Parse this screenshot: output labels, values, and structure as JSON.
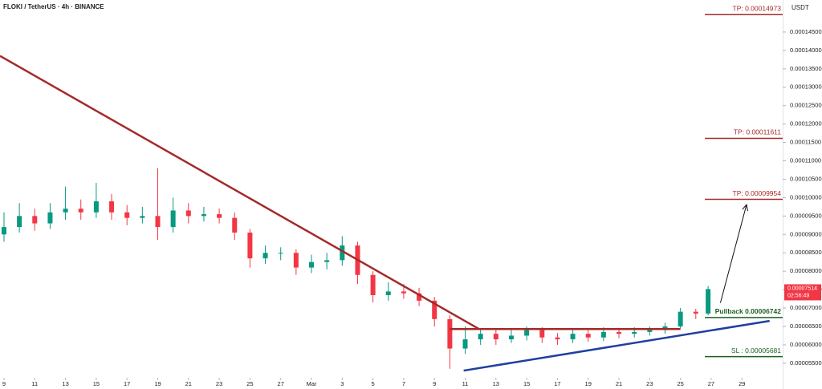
{
  "chart_data": {
    "type": "candlestick",
    "title": "FLOKI / TetherUS · 4h · BINANCE",
    "y_unit": "USDT",
    "up_color": "#089981",
    "down_color": "#f23645",
    "xlim": [
      -0.26,
      50.65
    ],
    "ylim": [
      4.8e-05,
      0.0001537
    ],
    "xticks": [
      {
        "value": 0,
        "label": "9"
      },
      {
        "value": 2,
        "label": "11"
      },
      {
        "value": 4,
        "label": "13"
      },
      {
        "value": 6,
        "label": "15"
      },
      {
        "value": 8,
        "label": "17"
      },
      {
        "value": 10,
        "label": "19"
      },
      {
        "value": 12,
        "label": "21"
      },
      {
        "value": 14,
        "label": "23"
      },
      {
        "value": 16,
        "label": "25"
      },
      {
        "value": 18,
        "label": "27"
      },
      {
        "value": 20,
        "label": "Mar"
      },
      {
        "value": 22,
        "label": "3"
      },
      {
        "value": 24,
        "label": "5"
      },
      {
        "value": 26,
        "label": "7"
      },
      {
        "value": 28,
        "label": "9"
      },
      {
        "value": 30,
        "label": "11"
      },
      {
        "value": 32,
        "label": "13"
      },
      {
        "value": 34,
        "label": "15"
      },
      {
        "value": 36,
        "label": "17"
      },
      {
        "value": 38,
        "label": "19"
      },
      {
        "value": 40,
        "label": "21"
      },
      {
        "value": 42,
        "label": "23"
      },
      {
        "value": 44,
        "label": "25"
      },
      {
        "value": 46,
        "label": "27"
      },
      {
        "value": 48,
        "label": "29"
      }
    ],
    "yticks": [
      {
        "value": 5.5e-05,
        "label": "0.00005500"
      },
      {
        "value": 6e-05,
        "label": "0.00006000"
      },
      {
        "value": 6.5e-05,
        "label": "0.00006500"
      },
      {
        "value": 7e-05,
        "label": "0.00007000"
      },
      {
        "value": 7.5e-05,
        "label": "0.00007500"
      },
      {
        "value": 8e-05,
        "label": "0.00008000"
      },
      {
        "value": 8.5e-05,
        "label": "0.00008500"
      },
      {
        "value": 9e-05,
        "label": "0.00009000"
      },
      {
        "value": 9.5e-05,
        "label": "0.00009500"
      },
      {
        "value": 0.0001,
        "label": "0.00010000"
      },
      {
        "value": 0.000105,
        "label": "0.00010500"
      },
      {
        "value": 0.00011,
        "label": "0.00011000"
      },
      {
        "value": 0.000115,
        "label": "0.00011500"
      },
      {
        "value": 0.00012,
        "label": "0.00012000"
      },
      {
        "value": 0.000125,
        "label": "0.00012500"
      },
      {
        "value": 0.00013,
        "label": "0.00013000"
      },
      {
        "value": 0.000135,
        "label": "0.00013500"
      },
      {
        "value": 0.00014,
        "label": "0.00014000"
      },
      {
        "value": 0.000145,
        "label": "0.00014500"
      }
    ],
    "candles": {
      "x": [
        0,
        1,
        2,
        3,
        4,
        5,
        6,
        7,
        8,
        9,
        10,
        11,
        12,
        13,
        14,
        15,
        16,
        17,
        18,
        19,
        20,
        21,
        22,
        23,
        24,
        25,
        26,
        27,
        28,
        29,
        30,
        31,
        32,
        33,
        34,
        35,
        36,
        37,
        38,
        39,
        40,
        41,
        42,
        43,
        44,
        45,
        45.8
      ],
      "open": [
        9e-05,
        9.2e-05,
        9.5e-05,
        9.3e-05,
        9.6e-05,
        9.7e-05,
        9.6e-05,
        9.9e-05,
        9.6e-05,
        9.45e-05,
        9.5e-05,
        9.2e-05,
        9.65e-05,
        9.5e-05,
        9.55e-05,
        9.45e-05,
        9.05e-05,
        8.35e-05,
        8.5e-05,
        8.5e-05,
        8.1e-05,
        8.25e-05,
        8.3e-05,
        8.7e-05,
        7.9e-05,
        7.35e-05,
        7.45e-05,
        7.4e-05,
        7.2e-05,
        6.7e-05,
        5.9e-05,
        6.15e-05,
        6.3e-05,
        6.15e-05,
        6.25e-05,
        6.4e-05,
        6.2e-05,
        6.15e-05,
        6.3e-05,
        6.2e-05,
        6.35e-05,
        6.3e-05,
        6.35e-05,
        6.4e-05,
        6.5e-05,
        6.9e-05,
        6.85e-05
      ],
      "high": [
        9.6e-05,
        9.85e-05,
        9.7e-05,
        9.85e-05,
        0.000103,
        9.95e-05,
        0.000104,
        0.000101,
        9.8e-05,
        9.75e-05,
        0.000108,
        0.0001,
        9.85e-05,
        9.75e-05,
        9.7e-05,
        9.6e-05,
        9.15e-05,
        8.7e-05,
        8.65e-05,
        8.6e-05,
        8.45e-05,
        8.5e-05,
        8.95e-05,
        8.8e-05,
        8e-05,
        7.7e-05,
        7.65e-05,
        7.55e-05,
        7.3e-05,
        6.8e-05,
        6.5e-05,
        6.45e-05,
        6.4e-05,
        6.4e-05,
        6.5e-05,
        6.48e-05,
        6.32e-05,
        6.4e-05,
        6.4e-05,
        6.48e-05,
        6.45e-05,
        6.48e-05,
        6.5e-05,
        6.6e-05,
        7e-05,
        6.98e-05,
        7.6e-05
      ],
      "low": [
        8.8e-05,
        9.05e-05,
        9.1e-05,
        9.15e-05,
        9.4e-05,
        9.4e-05,
        9.45e-05,
        9.4e-05,
        9.25e-05,
        9.3e-05,
        8.85e-05,
        9.05e-05,
        9.3e-05,
        9.35e-05,
        9.3e-05,
        8.85e-05,
        8.1e-05,
        8.2e-05,
        8.3e-05,
        7.9e-05,
        7.95e-05,
        8.05e-05,
        8.15e-05,
        7.65e-05,
        7.15e-05,
        7.2e-05,
        7.25e-05,
        7.05e-05,
        6.5e-05,
        5.35e-05,
        5.75e-05,
        6e-05,
        6e-05,
        6.05e-05,
        6.12e-05,
        6.05e-05,
        6e-05,
        6.05e-05,
        6.08e-05,
        6.1e-05,
        6.18e-05,
        6.2e-05,
        6.25e-05,
        6.3e-05,
        6.45e-05,
        6.7e-05,
        6.8e-05
      ],
      "close": [
        9.2e-05,
        9.5e-05,
        9.3e-05,
        9.6e-05,
        9.7e-05,
        9.6e-05,
        9.9e-05,
        9.6e-05,
        9.45e-05,
        9.5e-05,
        9.2e-05,
        9.65e-05,
        9.5e-05,
        9.55e-05,
        9.45e-05,
        9.05e-05,
        8.35e-05,
        8.5e-05,
        8.5e-05,
        8.1e-05,
        8.25e-05,
        8.3e-05,
        8.7e-05,
        7.9e-05,
        7.35e-05,
        7.45e-05,
        7.4e-05,
        7.2e-05,
        6.7e-05,
        5.9e-05,
        6.15e-05,
        6.3e-05,
        6.15e-05,
        6.25e-05,
        6.4e-05,
        6.2e-05,
        6.15e-05,
        6.3e-05,
        6.2e-05,
        6.35e-05,
        6.3e-05,
        6.35e-05,
        6.4e-05,
        6.5e-05,
        6.9e-05,
        6.85e-05,
        7.514e-05
      ]
    },
    "trend_lines": [
      {
        "color": "#a52a2a",
        "x": [
          -0.26,
          30.9
        ],
        "y": [
          0.0001385,
          6.43e-05
        ]
      },
      {
        "color": "#1f3fa0",
        "x": [
          29.9,
          49.8
        ],
        "y": [
          5.3e-05,
          6.65e-05
        ]
      },
      {
        "color": "#a52a2a",
        "x": [
          29,
          44
        ],
        "y": [
          6.43e-05,
          6.43e-05
        ]
      }
    ],
    "arrow": {
      "color": "#111111",
      "x": [
        46.6,
        48.3
      ],
      "y": [
        7.14e-05,
        9.81e-05
      ]
    },
    "levels": [
      {
        "label": "TP: 0.00014973",
        "value": 0.00014973,
        "color": "#a52a2a"
      },
      {
        "label": "TP: 0.00011611",
        "value": 0.00011611,
        "color": "#a52a2a"
      },
      {
        "label": "TP: 0.00009954",
        "value": 9.954e-05,
        "color": "#a52a2a"
      },
      {
        "label": "Pullback 0.00006742",
        "value": 6.742e-05,
        "color": "#1b5e20"
      },
      {
        "label": "SL : 0.00005681",
        "value": 5.681e-05,
        "color": "#1b5e20"
      }
    ],
    "current_price": 7.514e-05,
    "countdown": "02:56:49",
    "price_color": "#f23645"
  }
}
